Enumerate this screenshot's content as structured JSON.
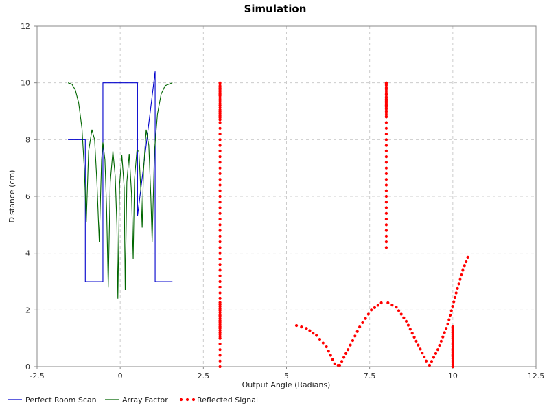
{
  "chart_data": {
    "type": "line",
    "title": "Simulation",
    "xlabel": "Output Angle (Radians)",
    "ylabel": "Distance (cm)",
    "xlim": [
      -2.5,
      12.5
    ],
    "ylim": [
      0,
      12
    ],
    "xticks": [
      -2.5,
      0,
      2.5,
      5,
      7.5,
      10,
      12.5
    ],
    "xtick_labels": [
      "-2.5",
      "0",
      "2.5",
      "5",
      "7.5",
      "10",
      "12.5"
    ],
    "yticks": [
      0,
      2,
      4,
      6,
      8,
      10,
      12
    ],
    "ytick_labels": [
      "0",
      "2",
      "4",
      "6",
      "8",
      "10",
      "12"
    ],
    "grid": true,
    "legend_position": "bottom-left",
    "series": [
      {
        "name": "Perfect Room Scan",
        "style": "line",
        "color": "#0000cc",
        "points": [
          [
            -1.57,
            8.0
          ],
          [
            -1.05,
            8.0
          ],
          [
            -1.05,
            3.0
          ],
          [
            -0.52,
            3.0
          ],
          [
            -0.52,
            10.0
          ],
          [
            0.52,
            10.0
          ],
          [
            0.52,
            5.3
          ],
          [
            1.05,
            10.4
          ],
          [
            1.05,
            3.0
          ],
          [
            1.57,
            3.0
          ]
        ]
      },
      {
        "name": "Array Factor",
        "style": "line",
        "color": "#006600",
        "points": [
          [
            -1.57,
            10.0
          ],
          [
            -1.45,
            9.95
          ],
          [
            -1.35,
            9.75
          ],
          [
            -1.25,
            9.3
          ],
          [
            -1.15,
            8.4
          ],
          [
            -1.08,
            7.0
          ],
          [
            -1.02,
            5.1
          ],
          [
            -0.95,
            7.6
          ],
          [
            -0.85,
            8.35
          ],
          [
            -0.77,
            8.0
          ],
          [
            -0.7,
            6.5
          ],
          [
            -0.63,
            4.4
          ],
          [
            -0.56,
            7.3
          ],
          [
            -0.52,
            7.9
          ],
          [
            -0.46,
            7.3
          ],
          [
            -0.41,
            5.6
          ],
          [
            -0.36,
            2.8
          ],
          [
            -0.3,
            6.5
          ],
          [
            -0.22,
            7.6
          ],
          [
            -0.15,
            6.7
          ],
          [
            -0.1,
            5.0
          ],
          [
            -0.07,
            2.4
          ],
          [
            -0.02,
            6.4
          ],
          [
            0.05,
            7.45
          ],
          [
            0.12,
            6.3
          ],
          [
            0.15,
            2.7
          ],
          [
            0.2,
            6.5
          ],
          [
            0.27,
            7.5
          ],
          [
            0.34,
            6.1
          ],
          [
            0.39,
            3.8
          ],
          [
            0.43,
            6.6
          ],
          [
            0.5,
            7.6
          ],
          [
            0.56,
            7.6
          ],
          [
            0.62,
            6.2
          ],
          [
            0.66,
            4.9
          ],
          [
            0.7,
            6.9
          ],
          [
            0.78,
            8.35
          ],
          [
            0.86,
            7.8
          ],
          [
            0.92,
            6.0
          ],
          [
            0.96,
            4.4
          ],
          [
            1.03,
            7.6
          ],
          [
            1.12,
            8.9
          ],
          [
            1.23,
            9.6
          ],
          [
            1.35,
            9.9
          ],
          [
            1.57,
            10.0
          ]
        ]
      },
      {
        "name": "Reflected Signal",
        "style": "dotted",
        "color": "#ff0000",
        "segments": [
          {
            "x": 3.0,
            "y_from": 0.0,
            "y_to": 10.0,
            "dense_from": 1.0,
            "dense_to": 2.3,
            "dense_top": 8.7
          },
          {
            "x": 8.0,
            "y_from": 4.2,
            "y_to": 10.0,
            "dense_top": 8.8
          },
          {
            "x": 10.0,
            "y_from": 0.0,
            "y_to": 1.4,
            "dense_from": 0.0,
            "dense_to": 1.4
          }
        ],
        "curves": [
          {
            "points": [
              [
                5.3,
                1.45
              ],
              [
                5.6,
                1.35
              ],
              [
                5.9,
                1.1
              ],
              [
                6.2,
                0.7
              ],
              [
                6.45,
                0.1
              ],
              [
                6.55,
                0.05
              ]
            ]
          },
          {
            "points": [
              [
                6.6,
                0.05
              ],
              [
                6.85,
                0.6
              ],
              [
                7.2,
                1.4
              ],
              [
                7.55,
                2.0
              ],
              [
                7.85,
                2.25
              ],
              [
                8.05,
                2.25
              ],
              [
                8.3,
                2.1
              ],
              [
                8.6,
                1.6
              ],
              [
                8.9,
                0.9
              ],
              [
                9.2,
                0.2
              ],
              [
                9.3,
                0.05
              ]
            ]
          },
          {
            "points": [
              [
                9.3,
                0.05
              ],
              [
                9.55,
                0.6
              ],
              [
                9.85,
                1.5
              ],
              [
                10.1,
                2.6
              ],
              [
                10.3,
                3.4
              ],
              [
                10.45,
                3.85
              ]
            ]
          }
        ]
      }
    ]
  }
}
